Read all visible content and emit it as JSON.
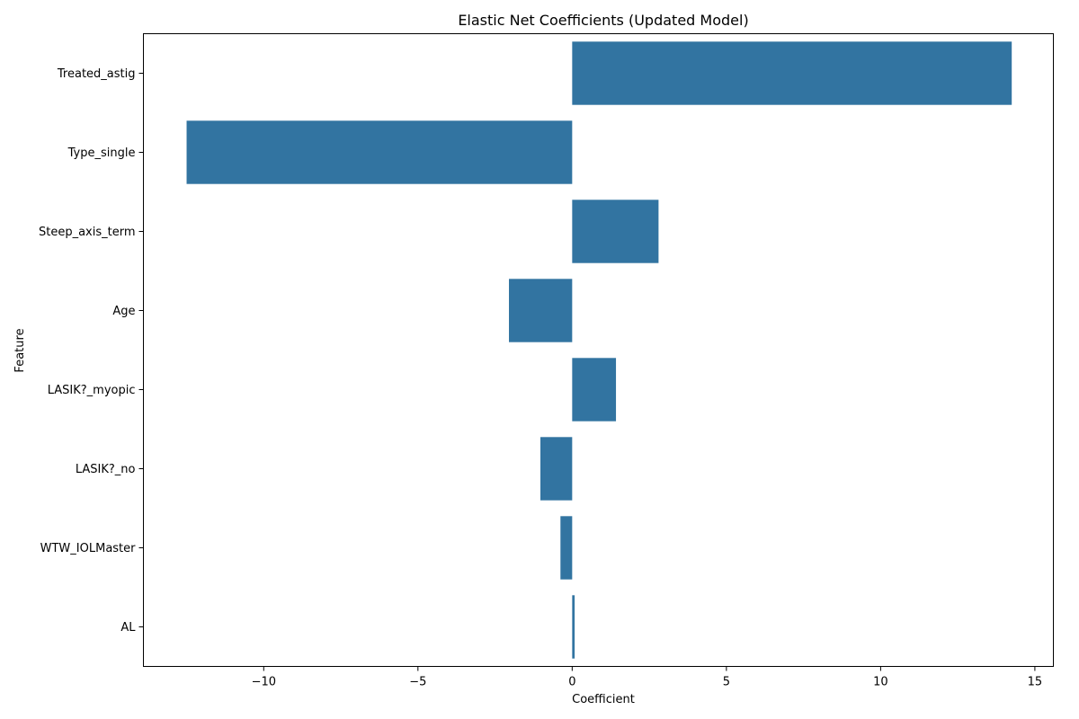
{
  "chart_data": {
    "type": "bar",
    "orientation": "horizontal",
    "title": "Elastic Net Coefficients (Updated Model)",
    "xlabel": "Coefficient",
    "ylabel": "Feature",
    "categories": [
      "Treated_astig",
      "Type_single",
      "Steep_axis_term",
      "Age",
      "LASIK?_myopic",
      "LASIK?_no",
      "WTW_IOLMaster",
      "AL"
    ],
    "values": [
      14.25,
      -12.5,
      2.8,
      -2.05,
      1.42,
      -1.03,
      -0.38,
      0.08
    ],
    "xlim": [
      -13.9,
      15.6
    ],
    "xticks": [
      -10,
      -5,
      0,
      5,
      10,
      15
    ],
    "xtick_labels": [
      "−10",
      "−5",
      "0",
      "5",
      "10",
      "15"
    ],
    "bar_color": "#3274a1",
    "grid": false,
    "legend": "none"
  }
}
